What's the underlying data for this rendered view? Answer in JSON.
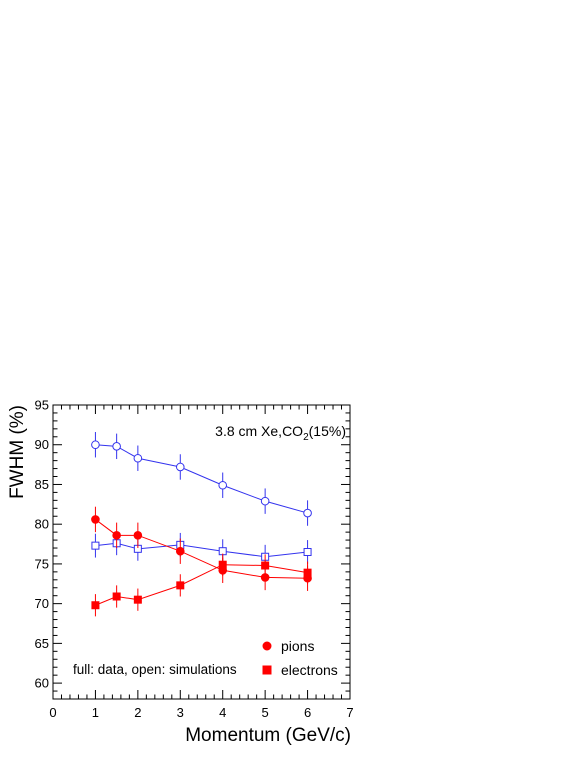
{
  "chart_data": {
    "type": "scatter",
    "annotation": {
      "prefix": "3.8 cm Xe,CO",
      "subscript": "2",
      "suffix": "(15%)"
    },
    "note": "full: data, open: simulations",
    "xlabel": "Momentum (GeV/c)",
    "ylabel": "FWHM (%)",
    "xlim": [
      0,
      7
    ],
    "ylim": [
      58,
      95
    ],
    "x_ticks": [
      0,
      1,
      2,
      3,
      4,
      5,
      6,
      7
    ],
    "y_ticks": [
      60,
      65,
      70,
      75,
      80,
      85,
      90,
      95
    ],
    "grid": false,
    "legend": {
      "position": "bottom-right",
      "entries": [
        {
          "label": "pions",
          "marker": "circle",
          "color": "#ff0000"
        },
        {
          "label": "electrons",
          "marker": "square",
          "color": "#ff0000"
        }
      ]
    },
    "series": [
      {
        "id": "sim-pions",
        "marker": "circle",
        "filled": false,
        "color": "#3333ee",
        "x": [
          1,
          1.5,
          2,
          3,
          4,
          5,
          6
        ],
        "y": [
          90.0,
          89.8,
          88.3,
          87.2,
          84.9,
          82.9,
          81.4
        ],
        "yerr": [
          1.6,
          1.6,
          1.6,
          1.6,
          1.6,
          1.6,
          1.6
        ]
      },
      {
        "id": "sim-electrons",
        "marker": "square",
        "filled": false,
        "color": "#3333ee",
        "x": [
          1,
          1.5,
          2,
          3,
          4,
          5,
          6
        ],
        "y": [
          77.3,
          77.6,
          76.9,
          77.4,
          76.6,
          75.9,
          76.5
        ],
        "yerr": [
          1.5,
          1.5,
          1.5,
          1.5,
          1.5,
          1.5,
          1.5
        ]
      },
      {
        "id": "data-pions",
        "marker": "circle",
        "filled": true,
        "color": "#ff0000",
        "x": [
          1,
          1.5,
          2,
          3,
          4,
          5,
          6
        ],
        "y": [
          80.6,
          78.6,
          78.6,
          76.6,
          74.2,
          73.3,
          73.2
        ],
        "yerr": [
          1.6,
          1.6,
          1.6,
          1.6,
          1.6,
          1.6,
          1.6
        ]
      },
      {
        "id": "data-electrons",
        "marker": "square",
        "filled": true,
        "color": "#ff0000",
        "x": [
          1,
          1.5,
          2,
          3,
          4,
          5,
          6
        ],
        "y": [
          69.8,
          70.9,
          70.5,
          72.3,
          74.9,
          74.8,
          73.9
        ],
        "yerr": [
          1.4,
          1.4,
          1.4,
          1.4,
          1.4,
          1.4,
          1.4
        ]
      }
    ]
  }
}
